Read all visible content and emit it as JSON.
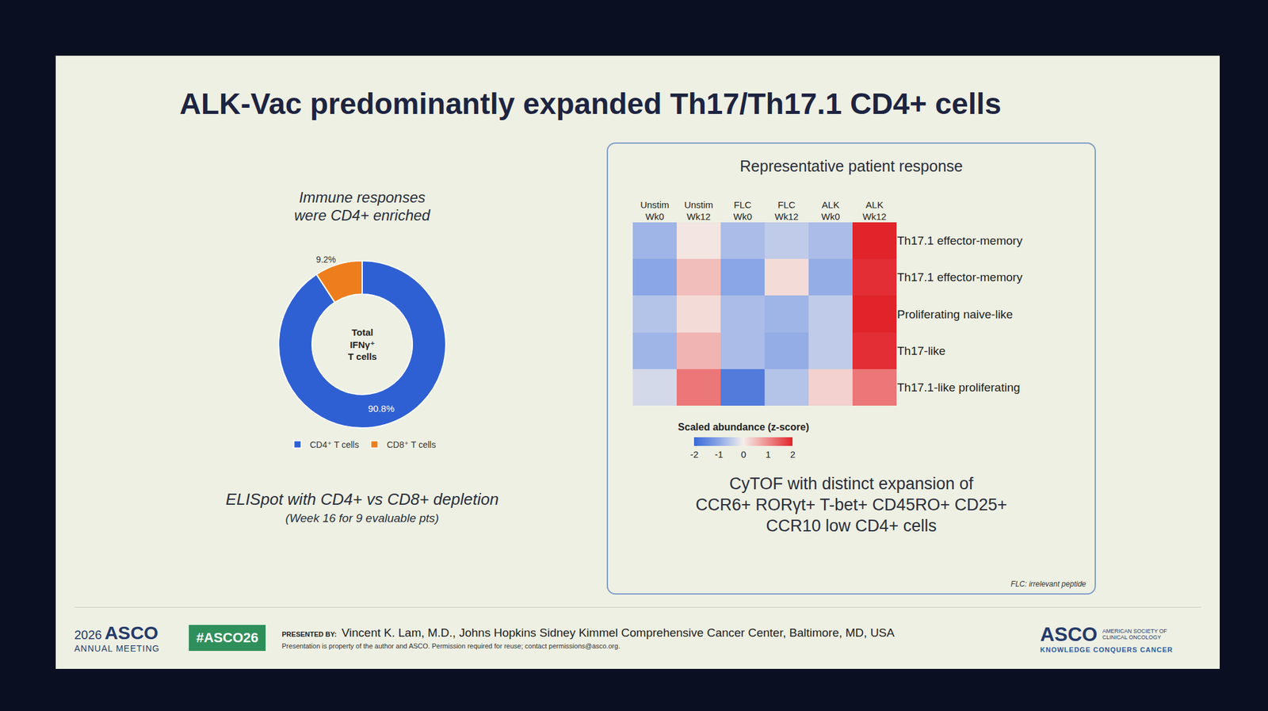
{
  "slide": {
    "title": "ALK-Vac predominantly expanded Th17/Th17.1 CD4+ cells",
    "footer": {
      "meeting": [
        "2026",
        "ASCO",
        "ANNUAL MEETING"
      ],
      "hashtag": "#ASCO26",
      "presenter_label": "PRESENTED BY:",
      "presenter": "Vincent K. Lam, M.D., Johns Hopkins Sidney Kimmel Comprehensive Cancer Center, Baltimore, MD, USA",
      "notice": "Presentation is property of the author and ASCO. Permission required for reuse; contact permissions@asco.org.",
      "logo": "ASCO",
      "organization": [
        "AMERICAN SOCIETY OF",
        "CLINICAL ONCOLOGY"
      ],
      "tagline": "KNOWLEDGE CONQUERS CANCER"
    }
  },
  "chart_data": [
    {
      "type": "pie",
      "title": "Immune responses were CD4+ enriched",
      "center_text": [
        "Total",
        "IFNγ⁺",
        "T cells"
      ],
      "categories": [
        "CD4⁺ T cells",
        "CD8⁺ T cells"
      ],
      "values": [
        90.8,
        9.2
      ],
      "value_labels": [
        "90.8%",
        "9.2%"
      ],
      "colors": [
        "#2f60d3",
        "#ee7e1c"
      ],
      "data_labels": true,
      "legend": "bottom",
      "caption": [
        "ELISpot with CD4+ vs CD8+ depletion",
        "(Week 16 for 9 evaluable pts)"
      ]
    },
    {
      "type": "heatmap",
      "title": "Representative patient response",
      "x": [
        "Unstim Wk0",
        "Unstim Wk12",
        "FLC Wk0",
        "FLC Wk12",
        "ALK Wk0",
        "ALK Wk12"
      ],
      "y": [
        "Th17.1 effector-memory",
        "Th17.1 effector-memory",
        "Proliferating naive-like",
        "Th17-like",
        "Th17.1-like proliferating"
      ],
      "z": [
        [
          -0.8,
          0.1,
          -0.7,
          -0.5,
          -0.7,
          2.0
        ],
        [
          -1.0,
          0.5,
          -1.0,
          0.2,
          -0.9,
          1.9
        ],
        [
          -0.6,
          0.2,
          -0.7,
          -0.8,
          -0.5,
          2.0
        ],
        [
          -0.8,
          0.6,
          -0.7,
          -0.9,
          -0.5,
          1.9
        ],
        [
          -0.3,
          1.2,
          -1.7,
          -0.6,
          0.3,
          1.2
        ]
      ],
      "colorbar": {
        "title": "Scaled abundance (z-score)",
        "range": [
          -2,
          2
        ],
        "ticks": [
          -2,
          -1,
          0,
          1,
          2
        ]
      },
      "caption": [
        "CyTOF with distinct expansion of",
        "CCR6+ RORγt+ T-bet+ CD45RO+ CD25+",
        "CCR10 low CD4+ cells"
      ],
      "note": "FLC: irrelevant peptide"
    }
  ]
}
